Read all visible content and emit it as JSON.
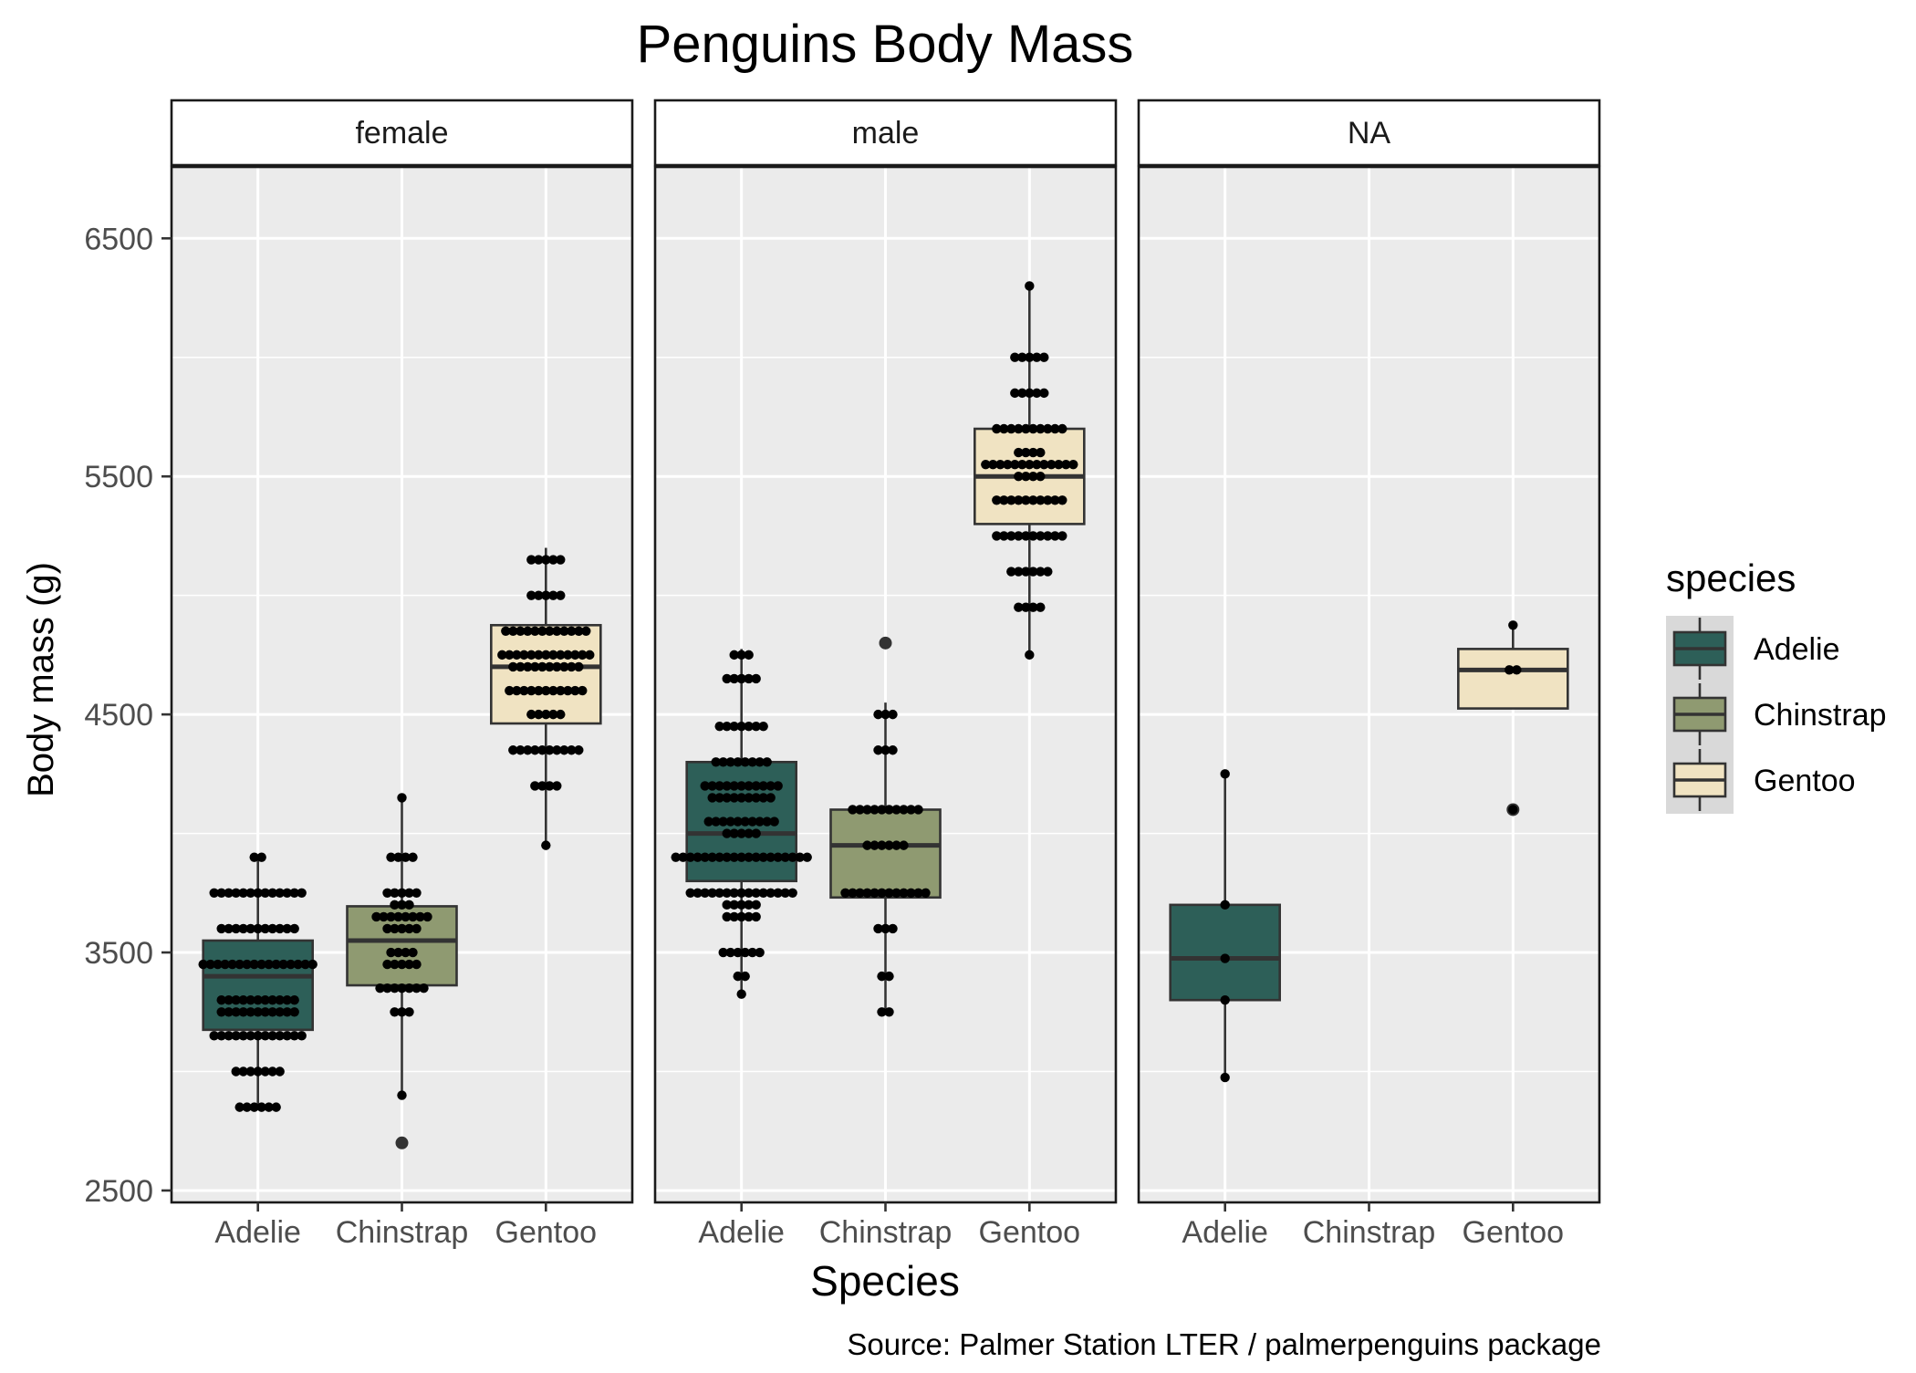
{
  "chart_data": {
    "type": "boxplot",
    "title": "Penguins Body Mass",
    "xlabel": "Species",
    "ylabel": "Body mass (g)",
    "caption": "Source: Palmer Station LTER / palmerpenguins package",
    "ylim": [
      2450,
      6800
    ],
    "yticks": [
      2500,
      3500,
      4500,
      5500,
      6500
    ],
    "categories": [
      "Adelie",
      "Chinstrap",
      "Gentoo"
    ],
    "legend": {
      "title": "species",
      "position": "right",
      "entries": [
        "Adelie",
        "Chinstrap",
        "Gentoo"
      ]
    },
    "colors": {
      "Adelie": "#2d5f58",
      "Chinstrap": "#8f9a71",
      "Gentoo": "#f0e3c2",
      "panel_bg": "#ebebeb",
      "grid": "#ffffff"
    },
    "facets": [
      {
        "label": "female",
        "boxes": [
          {
            "species": "Adelie",
            "min": 2850,
            "q1": 3175,
            "median": 3400,
            "q3": 3550,
            "max": 3900,
            "outliers": []
          },
          {
            "species": "Chinstrap",
            "min": 2900,
            "q1": 3362,
            "median": 3550,
            "q3": 3694,
            "max": 4150,
            "outliers": [
              2700
            ]
          },
          {
            "species": "Gentoo",
            "min": 3950,
            "q1": 4462,
            "median": 4700,
            "q3": 4875,
            "max": 5200,
            "outliers": []
          }
        ],
        "points": [
          {
            "species": "Adelie",
            "values": [
              2850,
              2850,
              2850,
              2850,
              2850,
              2850,
              3000,
              3000,
              3000,
              3000,
              3000,
              3000,
              3000,
              3150,
              3150,
              3150,
              3150,
              3150,
              3150,
              3150,
              3150,
              3150,
              3150,
              3150,
              3150,
              3150,
              3250,
              3250,
              3250,
              3250,
              3250,
              3250,
              3250,
              3250,
              3250,
              3250,
              3250,
              3300,
              3300,
              3300,
              3300,
              3300,
              3300,
              3300,
              3300,
              3300,
              3300,
              3300,
              3450,
              3450,
              3450,
              3450,
              3450,
              3450,
              3450,
              3450,
              3450,
              3450,
              3450,
              3450,
              3450,
              3450,
              3450,
              3450,
              3600,
              3600,
              3600,
              3600,
              3600,
              3600,
              3600,
              3600,
              3600,
              3600,
              3600,
              3750,
              3750,
              3750,
              3750,
              3750,
              3750,
              3750,
              3750,
              3750,
              3750,
              3750,
              3750,
              3750,
              3900,
              3900
            ]
          },
          {
            "species": "Chinstrap",
            "values": [
              2900,
              3250,
              3250,
              3250,
              3350,
              3350,
              3350,
              3350,
              3350,
              3350,
              3350,
              3450,
              3450,
              3450,
              3450,
              3450,
              3500,
              3500,
              3500,
              3500,
              3600,
              3600,
              3600,
              3600,
              3600,
              3650,
              3650,
              3650,
              3650,
              3650,
              3650,
              3650,
              3650,
              3700,
              3700,
              3700,
              3750,
              3750,
              3750,
              3750,
              3750,
              3900,
              3900,
              3900,
              3900,
              4150
            ]
          },
          {
            "species": "Gentoo",
            "values": [
              3950,
              4200,
              4200,
              4200,
              4200,
              4350,
              4350,
              4350,
              4350,
              4350,
              4350,
              4350,
              4350,
              4350,
              4350,
              4500,
              4500,
              4500,
              4500,
              4500,
              4600,
              4600,
              4600,
              4600,
              4600,
              4600,
              4600,
              4600,
              4600,
              4600,
              4600,
              4700,
              4700,
              4700,
              4700,
              4700,
              4700,
              4700,
              4700,
              4700,
              4700,
              4750,
              4750,
              4750,
              4750,
              4750,
              4750,
              4750,
              4750,
              4750,
              4750,
              4750,
              4750,
              4750,
              4850,
              4850,
              4850,
              4850,
              4850,
              4850,
              4850,
              4850,
              4850,
              4850,
              4850,
              4850,
              5000,
              5000,
              5000,
              5000,
              5000,
              5150,
              5150,
              5150,
              5150,
              5150
            ]
          }
        ]
      },
      {
        "label": "male",
        "boxes": [
          {
            "species": "Adelie",
            "min": 3325,
            "q1": 3800,
            "median": 4000,
            "q3": 4300,
            "max": 4775,
            "outliers": []
          },
          {
            "species": "Chinstrap",
            "min": 3250,
            "q1": 3731,
            "median": 3950,
            "q3": 4100,
            "max": 4550,
            "outliers": [
              4800
            ]
          },
          {
            "species": "Gentoo",
            "min": 4750,
            "q1": 5300,
            "median": 5500,
            "q3": 5700,
            "max": 6300,
            "outliers": []
          }
        ],
        "points": [
          {
            "species": "Adelie",
            "values": [
              3325,
              3400,
              3400,
              3500,
              3500,
              3500,
              3500,
              3500,
              3500,
              3650,
              3650,
              3650,
              3650,
              3650,
              3700,
              3700,
              3700,
              3700,
              3700,
              3750,
              3750,
              3750,
              3750,
              3750,
              3750,
              3750,
              3750,
              3750,
              3750,
              3750,
              3750,
              3750,
              3750,
              3750,
              3900,
              3900,
              3900,
              3900,
              3900,
              3900,
              3900,
              3900,
              3900,
              3900,
              3900,
              3900,
              3900,
              3900,
              3900,
              3900,
              3900,
              3900,
              3900,
              4000,
              4000,
              4000,
              4000,
              4000,
              4050,
              4050,
              4050,
              4050,
              4050,
              4050,
              4050,
              4050,
              4050,
              4050,
              4150,
              4150,
              4150,
              4150,
              4150,
              4150,
              4150,
              4150,
              4150,
              4200,
              4200,
              4200,
              4200,
              4200,
              4200,
              4200,
              4200,
              4200,
              4200,
              4200,
              4300,
              4300,
              4300,
              4300,
              4300,
              4300,
              4300,
              4300,
              4450,
              4450,
              4450,
              4450,
              4450,
              4450,
              4450,
              4650,
              4650,
              4650,
              4650,
              4650,
              4750,
              4750,
              4750
            ]
          },
          {
            "species": "Chinstrap",
            "values": [
              3250,
              3250,
              3400,
              3400,
              3600,
              3600,
              3600,
              3750,
              3750,
              3750,
              3750,
              3750,
              3750,
              3750,
              3750,
              3750,
              3750,
              3750,
              3750,
              3950,
              3950,
              3950,
              3950,
              3950,
              3950,
              4100,
              4100,
              4100,
              4100,
              4100,
              4100,
              4100,
              4100,
              4100,
              4100,
              4350,
              4350,
              4350,
              4500,
              4500,
              4500
            ]
          },
          {
            "species": "Gentoo",
            "values": [
              4750,
              4950,
              4950,
              4950,
              4950,
              5100,
              5100,
              5100,
              5100,
              5100,
              5100,
              5250,
              5250,
              5250,
              5250,
              5250,
              5250,
              5250,
              5250,
              5250,
              5250,
              5400,
              5400,
              5400,
              5400,
              5400,
              5400,
              5400,
              5400,
              5400,
              5400,
              5500,
              5500,
              5500,
              5500,
              5550,
              5550,
              5550,
              5550,
              5550,
              5550,
              5550,
              5550,
              5550,
              5550,
              5550,
              5550,
              5550,
              5600,
              5600,
              5600,
              5600,
              5700,
              5700,
              5700,
              5700,
              5700,
              5700,
              5700,
              5700,
              5700,
              5700,
              5850,
              5850,
              5850,
              5850,
              5850,
              6000,
              6000,
              6000,
              6000,
              6000,
              6300
            ]
          }
        ]
      },
      {
        "label": "NA",
        "boxes": [
          {
            "species": "Adelie",
            "min": 2975,
            "q1": 3300,
            "median": 3475,
            "q3": 3700,
            "max": 4250,
            "outliers": []
          },
          {
            "species": "Gentoo",
            "min": 4525,
            "q1": 4525,
            "median": 4687,
            "q3": 4775,
            "max": 4875,
            "outliers": [
              4100
            ]
          }
        ],
        "points": [
          {
            "species": "Adelie",
            "values": [
              2975,
              3300,
              3475,
              3700,
              4250
            ]
          },
          {
            "species": "Gentoo",
            "values": [
              4100,
              4687,
              4687,
              4875
            ]
          }
        ]
      }
    ]
  }
}
